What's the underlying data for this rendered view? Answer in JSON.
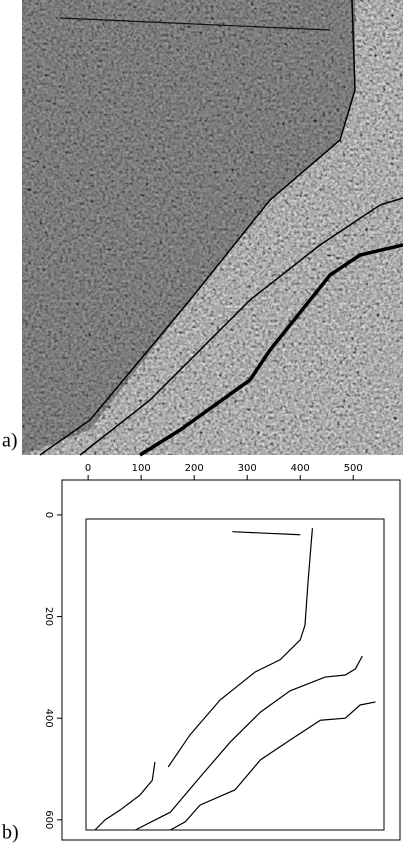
{
  "figure_a": {
    "label": "a)"
  },
  "chart_data": {
    "type": "line",
    "panel_label": "b)",
    "xlim": [
      -4,
      558
    ],
    "ylim": [
      8,
      620
    ],
    "y_inverted": true,
    "xticks": [
      0,
      100,
      200,
      300,
      400,
      500
    ],
    "yticks": [
      0,
      200,
      400,
      600
    ],
    "series": [
      {
        "color": "#000000",
        "x": [
          272,
          400
        ],
        "values": [
          33,
          39
        ]
      },
      {
        "color": "#000000",
        "x": [
          13,
          32,
          60,
          98,
          121,
          126
        ],
        "values": [
          620,
          600,
          581,
          551,
          522,
          486
        ]
      },
      {
        "color": "#000000",
        "x": [
          151,
          192,
          249,
          315,
          362,
          400,
          409,
          415,
          423
        ],
        "values": [
          496,
          433,
          364,
          309,
          285,
          246,
          217,
          128,
          26
        ]
      },
      {
        "color": "#000000",
        "x": [
          89,
          155,
          211,
          268,
          325,
          381,
          447,
          485,
          504,
          517
        ],
        "values": [
          620,
          585,
          516,
          447,
          388,
          346,
          319,
          315,
          303,
          278
        ]
      },
      {
        "color": "#000000",
        "x": [
          155,
          183,
          211,
          277,
          325,
          381,
          438,
          485,
          513,
          542
        ],
        "values": [
          620,
          604,
          571,
          541,
          482,
          443,
          404,
          400,
          374,
          368
        ]
      }
    ]
  }
}
